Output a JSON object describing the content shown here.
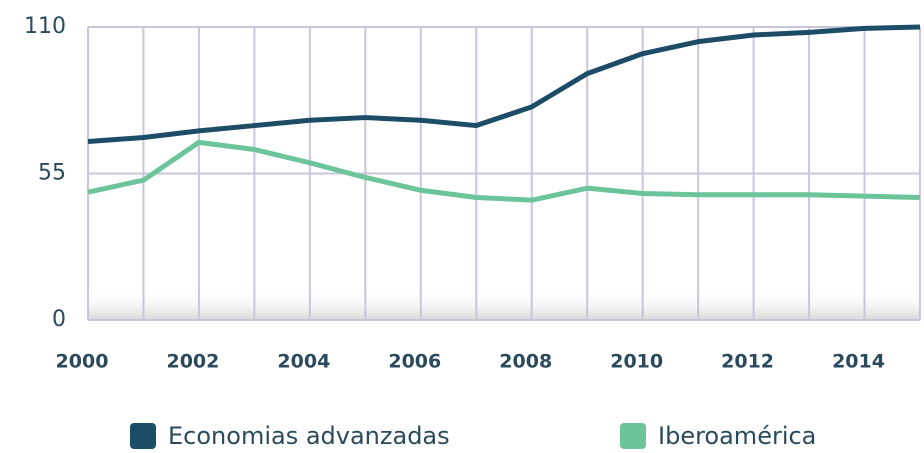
{
  "chart_data": {
    "type": "line",
    "x": [
      2000,
      2001,
      2002,
      2003,
      2004,
      2005,
      2006,
      2007,
      2008,
      2009,
      2010,
      2011,
      2012,
      2013,
      2014,
      2015
    ],
    "series": [
      {
        "name": "Economias advanzadas",
        "color": "#1d4d66",
        "values": [
          67,
          68.5,
          71,
          73,
          75,
          76,
          75,
          73,
          80,
          92.5,
          100,
          104.5,
          107,
          108,
          109.5,
          110
        ]
      },
      {
        "name": "Iberoamérica",
        "color": "#6cc49a",
        "values": [
          48,
          52.5,
          66.7,
          64,
          59,
          53.5,
          48.7,
          46,
          45,
          49.5,
          47.5,
          47,
          47,
          47,
          46.5,
          46
        ]
      }
    ],
    "xlim": [
      2000,
      2015
    ],
    "xticks": [
      2000,
      2002,
      2004,
      2006,
      2008,
      2010,
      2012,
      2014
    ],
    "ylim": [
      0,
      110
    ],
    "yticks": [
      0,
      55,
      110
    ],
    "grid": true
  }
}
